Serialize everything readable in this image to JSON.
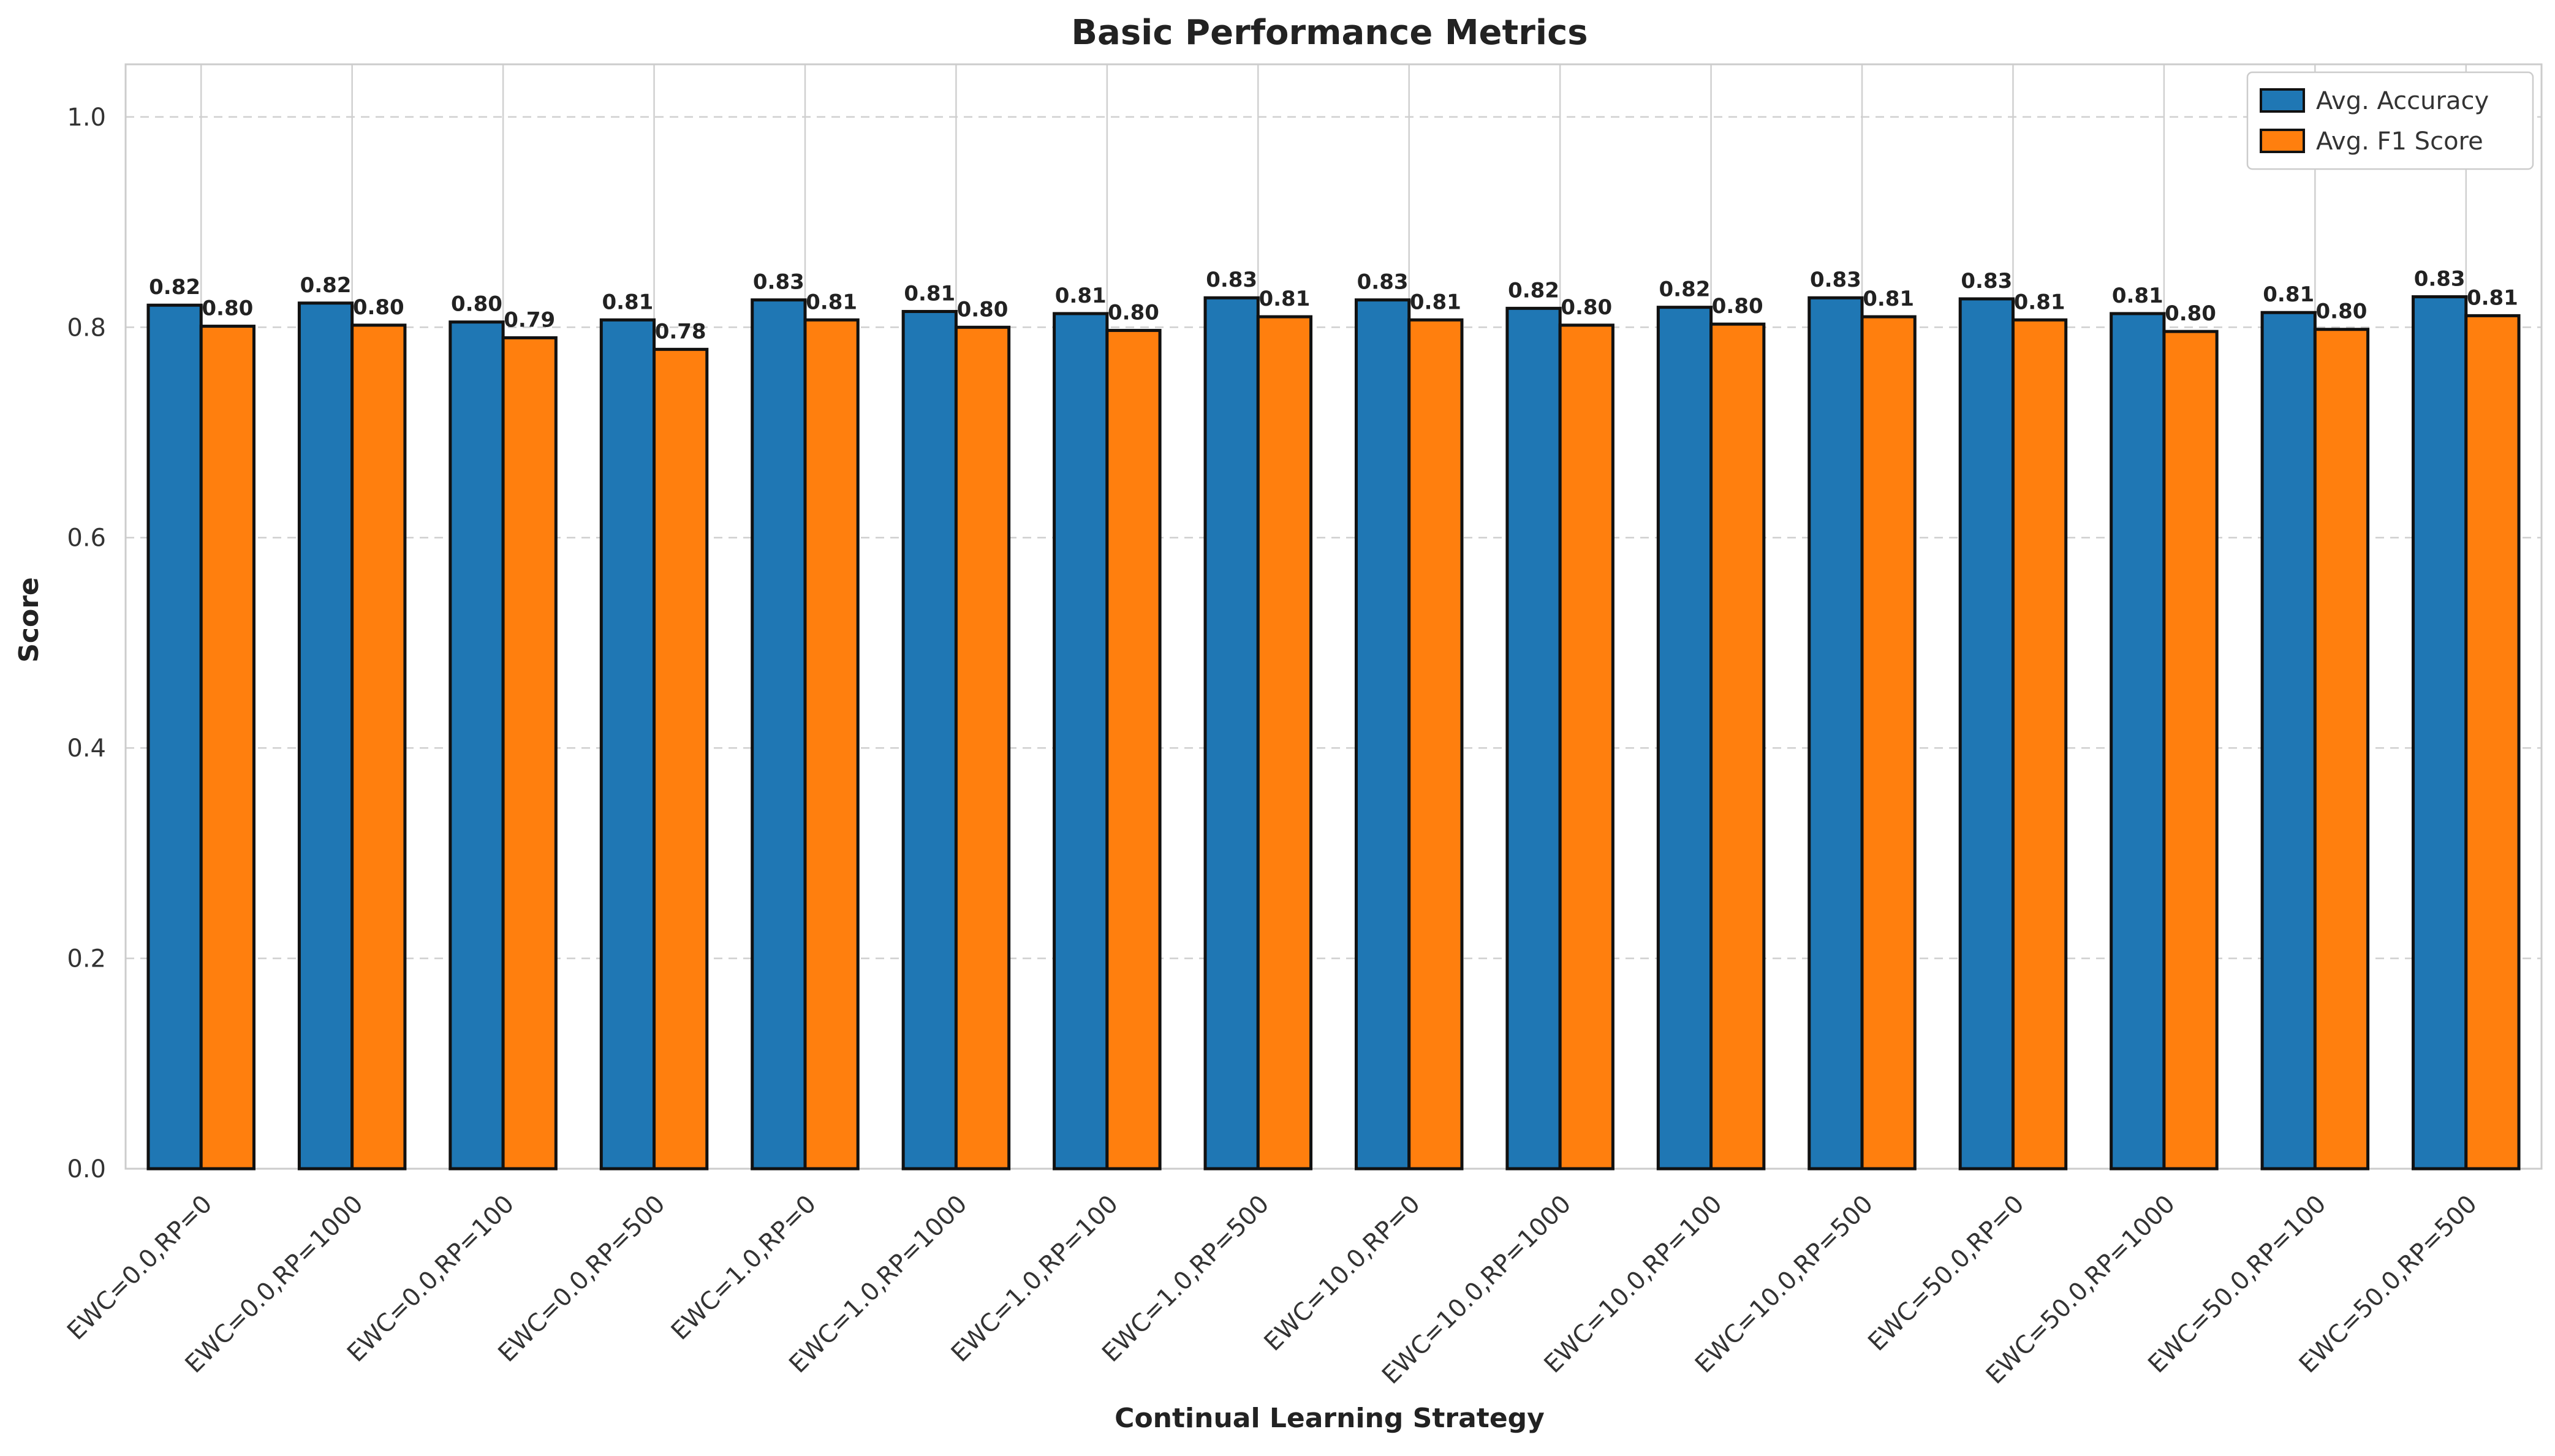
{
  "chart_data": {
    "type": "bar",
    "title": "Basic Performance Metrics",
    "xlabel": "Continual Learning Strategy",
    "ylabel": "Score",
    "ylim": [
      0,
      1.05
    ],
    "yticks": [
      "0.0",
      "0.2",
      "0.4",
      "0.6",
      "0.8",
      "1.0"
    ],
    "grid": true,
    "legend_position": "top-right",
    "categories": [
      "EWC=0.0,RP=0",
      "EWC=0.0,RP=1000",
      "EWC=0.0,RP=100",
      "EWC=0.0,RP=500",
      "EWC=1.0,RP=0",
      "EWC=1.0,RP=1000",
      "EWC=1.0,RP=100",
      "EWC=1.0,RP=500",
      "EWC=10.0,RP=0",
      "EWC=10.0,RP=1000",
      "EWC=10.0,RP=100",
      "EWC=10.0,RP=500",
      "EWC=50.0,RP=0",
      "EWC=50.0,RP=1000",
      "EWC=50.0,RP=100",
      "EWC=50.0,RP=500"
    ],
    "series": [
      {
        "name": "Avg. Accuracy",
        "color": "#1f77b4",
        "values": [
          0.821,
          0.823,
          0.805,
          0.807,
          0.826,
          0.815,
          0.813,
          0.828,
          0.826,
          0.818,
          0.819,
          0.828,
          0.827,
          0.813,
          0.814,
          0.829
        ],
        "labels": [
          "0.82",
          "0.82",
          "0.80",
          "0.81",
          "0.83",
          "0.81",
          "0.81",
          "0.83",
          "0.83",
          "0.82",
          "0.82",
          "0.83",
          "0.83",
          "0.81",
          "0.81",
          "0.83"
        ]
      },
      {
        "name": "Avg. F1 Score",
        "color": "#ff7f0e",
        "values": [
          0.801,
          0.802,
          0.79,
          0.779,
          0.807,
          0.8,
          0.797,
          0.81,
          0.807,
          0.802,
          0.803,
          0.81,
          0.807,
          0.796,
          0.798,
          0.811
        ],
        "labels": [
          "0.80",
          "0.80",
          "0.79",
          "0.78",
          "0.81",
          "0.80",
          "0.80",
          "0.81",
          "0.81",
          "0.80",
          "0.80",
          "0.81",
          "0.81",
          "0.80",
          "0.80",
          "0.81"
        ]
      }
    ]
  }
}
